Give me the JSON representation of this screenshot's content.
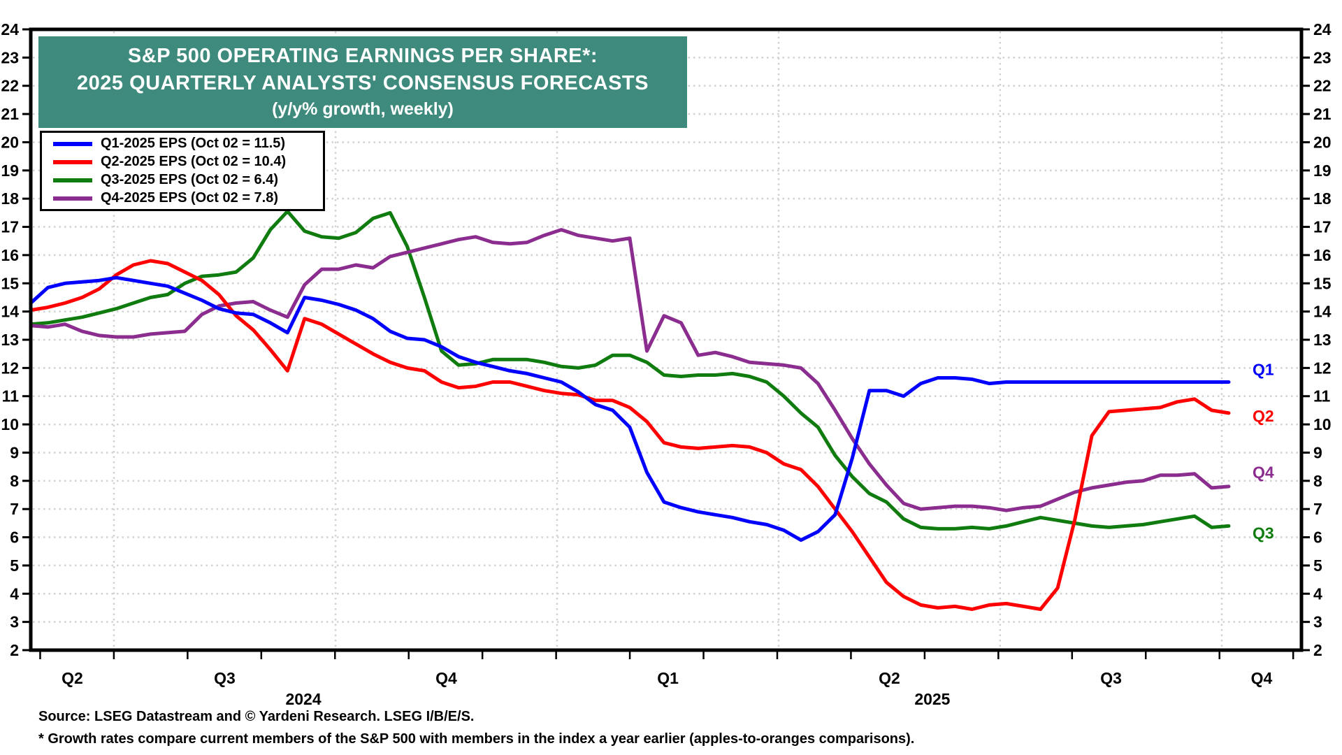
{
  "title": {
    "line1": "S&P 500 OPERATING EARNINGS PER SHARE*:",
    "line2": "2025 QUARTERLY ANALYSTS' CONSENSUS FORECASTS",
    "line3": "(y/y% growth, weekly)",
    "bg_color": "#3E8A7C"
  },
  "legend": {
    "items": [
      {
        "label": "Q1-2025 EPS (Oct 02 = 11.5)",
        "color": "#0000FF"
      },
      {
        "label": "Q2-2025 EPS (Oct 02 = 10.4)",
        "color": "#FF0000"
      },
      {
        "label": "Q3-2025 EPS (Oct 02 = 6.4)",
        "color": "#107C10"
      },
      {
        "label": "Q4-2025 EPS (Oct 02 = 7.8)",
        "color": "#8B2D8F"
      }
    ]
  },
  "footer": {
    "source": "Source: LSEG Datastream and © Yardeni Research. LSEG I/B/E/S.",
    "footnote": "* Growth rates compare current members of the S&P 500 with members in the index a year earlier (apples-to-oranges comparisons)."
  },
  "chart_data": {
    "type": "line",
    "title": "S&P 500 Operating Earnings Per Share: 2025 Quarterly Analysts' Consensus Forecasts (y/y% growth, weekly)",
    "ylabel": "y/y % growth",
    "ylim": [
      2,
      24
    ],
    "y_tick_step": 1,
    "grid": "dotted, horizontal every 1 unit, vertical at quarter boundaries",
    "legend_position": "top-left box",
    "x_axis": {
      "unit": "weeks (index 0 = late-May 2024, weekly through Oct 02 2025)",
      "total_weeks": 70,
      "axis_end_week": 74.25,
      "quarter_boundary_weeks": [
        4.86,
        17.81,
        30.75,
        43.7,
        56.64,
        69.59
      ],
      "month_tick_first_week": 0.55,
      "month_tick_interval_weeks": 4.3067,
      "labels": [
        {
          "text": "Q2",
          "week": 2.43
        },
        {
          "text": "Q3",
          "week": 11.33
        },
        {
          "text": "Q4",
          "week": 24.28
        },
        {
          "text": "Q1",
          "week": 37.23
        },
        {
          "text": "Q2",
          "week": 50.17
        },
        {
          "text": "Q3",
          "week": 63.12
        },
        {
          "text": "Q4",
          "week": 71.92
        }
      ],
      "years": [
        {
          "text": "2024",
          "week": 15.93
        },
        {
          "text": "2025",
          "week": 52.68
        }
      ]
    },
    "series": [
      {
        "name": "Q3-2025 EPS",
        "end_label": "Q3",
        "end_label_value": 6.15,
        "color": "#107C10",
        "values": [
          13.55,
          13.6,
          13.7,
          13.8,
          13.95,
          14.1,
          14.3,
          14.5,
          14.6,
          15.0,
          15.25,
          15.3,
          15.4,
          15.9,
          16.9,
          17.55,
          16.85,
          16.65,
          16.6,
          16.8,
          17.3,
          17.5,
          16.3,
          14.5,
          12.6,
          12.1,
          12.15,
          12.3,
          12.3,
          12.3,
          12.2,
          12.05,
          12.0,
          12.1,
          12.45,
          12.45,
          12.2,
          11.75,
          11.7,
          11.75,
          11.75,
          11.8,
          11.7,
          11.5,
          11.0,
          10.4,
          9.9,
          8.9,
          8.15,
          7.55,
          7.25,
          6.65,
          6.35,
          6.3,
          6.3,
          6.35,
          6.3,
          6.4,
          6.55,
          6.7,
          6.6,
          6.5,
          6.4,
          6.35,
          6.4,
          6.45,
          6.55,
          6.65,
          6.75,
          6.35,
          6.4
        ]
      },
      {
        "name": "Q4-2025 EPS",
        "end_label": "Q4",
        "end_label_value": 8.3,
        "color": "#8B2D8F",
        "values": [
          13.5,
          13.45,
          13.55,
          13.3,
          13.15,
          13.1,
          13.1,
          13.2,
          13.25,
          13.3,
          13.9,
          14.2,
          14.3,
          14.35,
          14.05,
          13.8,
          14.95,
          15.5,
          15.5,
          15.65,
          15.55,
          15.95,
          16.1,
          16.25,
          16.4,
          16.55,
          16.65,
          16.45,
          16.4,
          16.45,
          16.7,
          16.9,
          16.7,
          16.6,
          16.5,
          16.6,
          12.6,
          13.85,
          13.6,
          12.45,
          12.55,
          12.4,
          12.2,
          12.15,
          12.1,
          12.0,
          11.45,
          10.5,
          9.5,
          8.6,
          7.85,
          7.2,
          7.0,
          7.05,
          7.1,
          7.1,
          7.05,
          6.95,
          7.05,
          7.1,
          7.35,
          7.6,
          7.75,
          7.85,
          7.95,
          8.0,
          8.2,
          8.2,
          8.25,
          7.75,
          7.8
        ]
      },
      {
        "name": "Q2-2025 EPS",
        "end_label": "Q2",
        "end_label_value": 10.3,
        "color": "#FF0000",
        "values": [
          14.05,
          14.15,
          14.3,
          14.5,
          14.8,
          15.3,
          15.65,
          15.8,
          15.7,
          15.4,
          15.1,
          14.6,
          13.85,
          13.35,
          12.65,
          11.9,
          13.75,
          13.55,
          13.2,
          12.85,
          12.5,
          12.2,
          12.0,
          11.9,
          11.5,
          11.3,
          11.35,
          11.5,
          11.5,
          11.35,
          11.2,
          11.1,
          11.05,
          10.85,
          10.85,
          10.6,
          10.1,
          9.35,
          9.2,
          9.15,
          9.2,
          9.25,
          9.2,
          9.0,
          8.6,
          8.4,
          7.8,
          7.0,
          6.2,
          5.3,
          4.4,
          3.9,
          3.6,
          3.5,
          3.55,
          3.45,
          3.6,
          3.65,
          3.55,
          3.45,
          4.2,
          6.6,
          9.6,
          10.45,
          10.5,
          10.55,
          10.6,
          10.8,
          10.9,
          10.5,
          10.4
        ]
      },
      {
        "name": "Q1-2025 EPS",
        "end_label": "Q1",
        "end_label_value": 11.95,
        "color": "#0000FF",
        "values": [
          14.3,
          14.85,
          15.0,
          15.05,
          15.1,
          15.2,
          15.1,
          15.0,
          14.9,
          14.65,
          14.4,
          14.1,
          13.95,
          13.9,
          13.6,
          13.25,
          14.5,
          14.4,
          14.25,
          14.05,
          13.75,
          13.3,
          13.05,
          13.0,
          12.75,
          12.4,
          12.2,
          12.05,
          11.9,
          11.8,
          11.65,
          11.5,
          11.15,
          10.7,
          10.5,
          9.9,
          8.3,
          7.25,
          7.05,
          6.9,
          6.8,
          6.7,
          6.55,
          6.45,
          6.25,
          5.9,
          6.2,
          6.8,
          8.8,
          11.2,
          11.2,
          11.0,
          11.45,
          11.65,
          11.65,
          11.6,
          11.45,
          11.5,
          11.5,
          11.5,
          11.5,
          11.5,
          11.5,
          11.5,
          11.5,
          11.5,
          11.5,
          11.5,
          11.5,
          11.5,
          11.5
        ]
      }
    ]
  }
}
